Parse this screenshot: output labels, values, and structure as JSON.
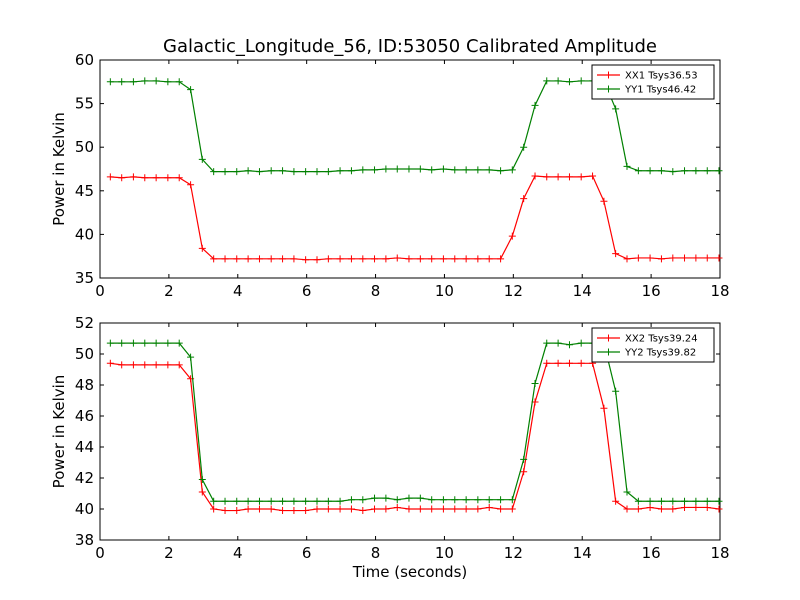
{
  "chart_data": [
    {
      "type": "line",
      "title": "Galactic_Longitude_56, ID:53050 Calibrated Amplitude",
      "xlabel": "",
      "ylabel": "Power in Kelvin",
      "xlim": [
        0,
        18
      ],
      "ylim": [
        35,
        60
      ],
      "xticks": [
        0,
        2,
        4,
        6,
        8,
        10,
        12,
        14,
        16,
        18
      ],
      "yticks": [
        35,
        40,
        45,
        50,
        55,
        60
      ],
      "legend_position": "upper right",
      "grid": false,
      "x": [
        0.3,
        0.63,
        0.97,
        1.3,
        1.63,
        1.97,
        2.3,
        2.63,
        2.97,
        3.3,
        3.63,
        3.97,
        4.3,
        4.63,
        4.97,
        5.3,
        5.63,
        5.97,
        6.3,
        6.63,
        6.97,
        7.3,
        7.63,
        7.97,
        8.3,
        8.63,
        8.97,
        9.3,
        9.63,
        9.97,
        10.3,
        10.63,
        10.97,
        11.3,
        11.63,
        11.97,
        12.3,
        12.63,
        12.97,
        13.3,
        13.63,
        13.97,
        14.3,
        14.63,
        14.97,
        15.3,
        15.63,
        15.97,
        16.3,
        16.63,
        16.97,
        17.3,
        17.63,
        17.97
      ],
      "series": [
        {
          "name": "XX1 Tsys36.53",
          "color": "#ff0000",
          "values": [
            46.6,
            46.5,
            46.6,
            46.5,
            46.5,
            46.5,
            46.5,
            45.7,
            38.4,
            37.2,
            37.2,
            37.2,
            37.2,
            37.2,
            37.2,
            37.2,
            37.2,
            37.1,
            37.1,
            37.2,
            37.2,
            37.2,
            37.2,
            37.2,
            37.2,
            37.3,
            37.2,
            37.2,
            37.2,
            37.2,
            37.2,
            37.2,
            37.2,
            37.2,
            37.2,
            39.8,
            44.1,
            46.7,
            46.6,
            46.6,
            46.6,
            46.6,
            46.7,
            43.8,
            37.8,
            37.2,
            37.3,
            37.3,
            37.2,
            37.3,
            37.3,
            37.3,
            37.3,
            37.3
          ]
        },
        {
          "name": "YY1 Tsys46.42",
          "color": "#008000",
          "values": [
            57.5,
            57.5,
            57.5,
            57.6,
            57.6,
            57.5,
            57.5,
            56.6,
            48.6,
            47.2,
            47.2,
            47.2,
            47.3,
            47.2,
            47.3,
            47.3,
            47.2,
            47.2,
            47.2,
            47.2,
            47.3,
            47.3,
            47.4,
            47.4,
            47.5,
            47.5,
            47.5,
            47.5,
            47.4,
            47.5,
            47.4,
            47.4,
            47.4,
            47.4,
            47.3,
            47.4,
            50.0,
            54.8,
            57.6,
            57.6,
            57.5,
            57.6,
            57.6,
            57.6,
            54.4,
            47.8,
            47.3,
            47.3,
            47.3,
            47.2,
            47.3,
            47.3,
            47.3,
            47.3
          ]
        }
      ]
    },
    {
      "type": "line",
      "title": "",
      "xlabel": "Time (seconds)",
      "ylabel": "Power in Kelvin",
      "xlim": [
        0,
        18
      ],
      "ylim": [
        38,
        52
      ],
      "xticks": [
        0,
        2,
        4,
        6,
        8,
        10,
        12,
        14,
        16,
        18
      ],
      "yticks": [
        38,
        40,
        42,
        44,
        46,
        48,
        50,
        52
      ],
      "legend_position": "upper right",
      "grid": false,
      "x": [
        0.3,
        0.63,
        0.97,
        1.3,
        1.63,
        1.97,
        2.3,
        2.63,
        2.97,
        3.3,
        3.63,
        3.97,
        4.3,
        4.63,
        4.97,
        5.3,
        5.63,
        5.97,
        6.3,
        6.63,
        6.97,
        7.3,
        7.63,
        7.97,
        8.3,
        8.63,
        8.97,
        9.3,
        9.63,
        9.97,
        10.3,
        10.63,
        10.97,
        11.3,
        11.63,
        11.97,
        12.3,
        12.63,
        12.97,
        13.3,
        13.63,
        13.97,
        14.3,
        14.63,
        14.97,
        15.3,
        15.63,
        15.97,
        16.3,
        16.63,
        16.97,
        17.3,
        17.63,
        17.97
      ],
      "series": [
        {
          "name": "XX2 Tsys39.24",
          "color": "#ff0000",
          "values": [
            49.4,
            49.3,
            49.3,
            49.3,
            49.3,
            49.3,
            49.3,
            48.4,
            41.1,
            40.0,
            39.9,
            39.9,
            40.0,
            40.0,
            40.0,
            39.9,
            39.9,
            39.9,
            40.0,
            40.0,
            40.0,
            40.0,
            39.9,
            40.0,
            40.0,
            40.1,
            40.0,
            40.0,
            40.0,
            40.0,
            40.0,
            40.0,
            40.0,
            40.1,
            40.0,
            40.0,
            42.4,
            46.9,
            49.4,
            49.4,
            49.4,
            49.4,
            49.4,
            46.5,
            40.5,
            40.0,
            40.0,
            40.1,
            40.0,
            40.0,
            40.1,
            40.1,
            40.1,
            40.0
          ]
        },
        {
          "name": "YY2 Tsys39.82",
          "color": "#008000",
          "values": [
            50.7,
            50.7,
            50.7,
            50.7,
            50.7,
            50.7,
            50.7,
            49.8,
            41.9,
            40.5,
            40.5,
            40.5,
            40.5,
            40.5,
            40.5,
            40.5,
            40.5,
            40.5,
            40.5,
            40.5,
            40.5,
            40.6,
            40.6,
            40.7,
            40.7,
            40.6,
            40.7,
            40.7,
            40.6,
            40.6,
            40.6,
            40.6,
            40.6,
            40.6,
            40.6,
            40.6,
            43.2,
            48.1,
            50.7,
            50.7,
            50.6,
            50.7,
            50.7,
            50.7,
            47.6,
            41.1,
            40.5,
            40.5,
            40.5,
            40.5,
            40.5,
            40.5,
            40.5,
            40.5
          ]
        }
      ]
    }
  ]
}
